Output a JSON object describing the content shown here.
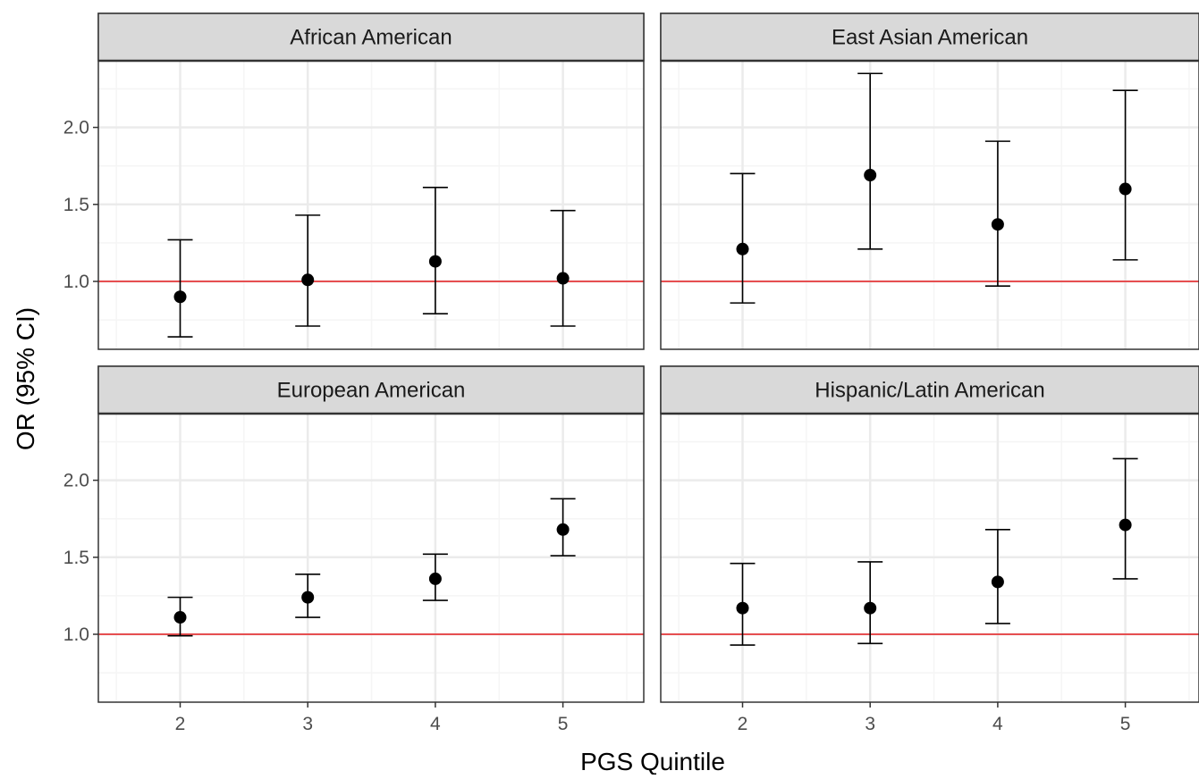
{
  "chart_data": {
    "type": "scatter",
    "xlabel": "PGS Quintile",
    "ylabel": "OR (95% CI)",
    "x_ticks": [
      "2",
      "3",
      "4",
      "5"
    ],
    "y_ticks": [
      "1.0",
      "1.5",
      "2.0"
    ],
    "xlim": [
      1.45,
      5.55
    ],
    "ylim": [
      0.57,
      2.44
    ],
    "reference_line": {
      "y": 1.0,
      "color": "#e41a1c"
    },
    "grid": true,
    "facets": [
      {
        "title": "African American",
        "points": [
          {
            "x": 2,
            "or": 0.9,
            "lower": 0.64,
            "upper": 1.27
          },
          {
            "x": 3,
            "or": 1.01,
            "lower": 0.71,
            "upper": 1.43
          },
          {
            "x": 4,
            "or": 1.13,
            "lower": 0.79,
            "upper": 1.61
          },
          {
            "x": 5,
            "or": 1.02,
            "lower": 0.71,
            "upper": 1.46
          }
        ]
      },
      {
        "title": "East Asian American",
        "points": [
          {
            "x": 2,
            "or": 1.21,
            "lower": 0.86,
            "upper": 1.7
          },
          {
            "x": 3,
            "or": 1.69,
            "lower": 1.21,
            "upper": 2.35
          },
          {
            "x": 4,
            "or": 1.37,
            "lower": 0.97,
            "upper": 1.91
          },
          {
            "x": 5,
            "or": 1.6,
            "lower": 1.14,
            "upper": 2.24
          }
        ]
      },
      {
        "title": "European American",
        "points": [
          {
            "x": 2,
            "or": 1.11,
            "lower": 0.99,
            "upper": 1.24
          },
          {
            "x": 3,
            "or": 1.24,
            "lower": 1.11,
            "upper": 1.39
          },
          {
            "x": 4,
            "or": 1.36,
            "lower": 1.22,
            "upper": 1.52
          },
          {
            "x": 5,
            "or": 1.68,
            "lower": 1.51,
            "upper": 1.88
          }
        ]
      },
      {
        "title": "Hispanic/Latin American",
        "points": [
          {
            "x": 2,
            "or": 1.17,
            "lower": 0.93,
            "upper": 1.46
          },
          {
            "x": 3,
            "or": 1.17,
            "lower": 0.94,
            "upper": 1.47
          },
          {
            "x": 4,
            "or": 1.34,
            "lower": 1.07,
            "upper": 1.68
          },
          {
            "x": 5,
            "or": 1.71,
            "lower": 1.36,
            "upper": 2.14
          }
        ]
      }
    ]
  },
  "colors": {
    "point": "#000000",
    "strip_fill": "#d9d9d9",
    "panel_border": "#333333",
    "grid_major": "#ebebeb",
    "grid_minor": "#f5f5f5",
    "reference_line": "#e41a1c"
  }
}
